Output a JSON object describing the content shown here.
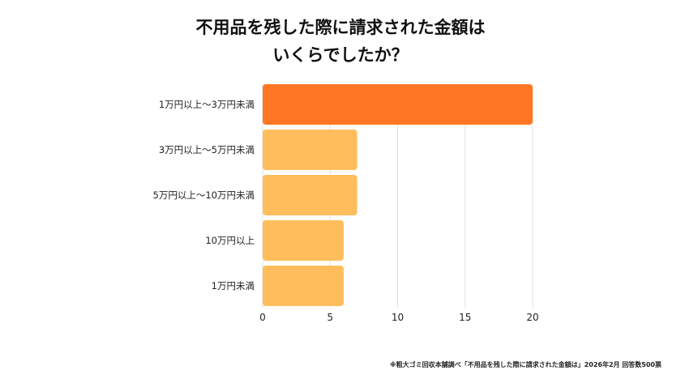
{
  "chart_data": {
    "type": "bar",
    "orientation": "horizontal",
    "title": [
      "不用品を残した際に請求された金額は",
      "いくらでしたか？"
    ],
    "categories": [
      "1万円以上〜3万円未満",
      "3万円以上〜5万円未満",
      "5万円以上〜10万円未満",
      "10万円以上",
      "1万円未満"
    ],
    "values": [
      20,
      7,
      7,
      6,
      6
    ],
    "xlim": [
      0,
      20
    ],
    "xticks": [
      0,
      5,
      10,
      15,
      20
    ],
    "grid": true,
    "colors": {
      "highlight": "#FF7722",
      "default": "#FFBD5C",
      "grid": "#e0e0e0"
    },
    "note": "※粗大ゴミ回収本舗調べ「不用品を残した際に請求された金額は」2026年2月 回答数500票"
  }
}
